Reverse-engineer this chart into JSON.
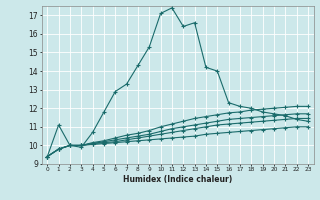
{
  "title": "",
  "xlabel": "Humidex (Indice chaleur)",
  "bg_color": "#cce8ea",
  "grid_color": "#b8d8da",
  "line_color": "#1a6b6b",
  "xlim": [
    -0.5,
    23.5
  ],
  "ylim": [
    9,
    17.5
  ],
  "yticks": [
    9,
    10,
    11,
    12,
    13,
    14,
    15,
    16,
    17
  ],
  "xticks": [
    0,
    1,
    2,
    3,
    4,
    5,
    6,
    7,
    8,
    9,
    10,
    11,
    12,
    13,
    14,
    15,
    16,
    17,
    18,
    19,
    20,
    21,
    22,
    23
  ],
  "main_x": [
    0,
    1,
    2,
    3,
    4,
    5,
    6,
    7,
    8,
    9,
    10,
    11,
    12,
    13,
    14,
    15,
    16,
    17,
    18,
    19,
    20,
    21,
    22,
    23
  ],
  "main_y": [
    9.4,
    11.1,
    10.0,
    9.9,
    10.7,
    11.8,
    12.9,
    13.3,
    14.3,
    15.3,
    17.1,
    17.4,
    16.4,
    16.6,
    14.2,
    14.0,
    12.3,
    12.1,
    12.0,
    11.8,
    11.7,
    11.6,
    11.4,
    11.3
  ],
  "flat1_x": [
    0,
    1,
    2,
    3,
    4,
    5,
    6,
    7,
    8,
    9,
    10,
    11,
    12,
    13,
    14,
    15,
    16,
    17,
    18,
    19,
    20,
    21,
    22,
    23
  ],
  "flat1_y": [
    9.4,
    9.8,
    10.0,
    10.0,
    10.05,
    10.1,
    10.15,
    10.2,
    10.25,
    10.3,
    10.35,
    10.4,
    10.45,
    10.5,
    10.6,
    10.65,
    10.7,
    10.75,
    10.8,
    10.85,
    10.9,
    10.95,
    11.0,
    11.0
  ],
  "flat2_x": [
    0,
    1,
    2,
    3,
    4,
    5,
    6,
    7,
    8,
    9,
    10,
    11,
    12,
    13,
    14,
    15,
    16,
    17,
    18,
    19,
    20,
    21,
    22,
    23
  ],
  "flat2_y": [
    9.4,
    9.8,
    10.0,
    10.0,
    10.1,
    10.15,
    10.2,
    10.3,
    10.4,
    10.5,
    10.6,
    10.7,
    10.8,
    10.9,
    11.0,
    11.1,
    11.15,
    11.2,
    11.25,
    11.3,
    11.35,
    11.4,
    11.45,
    11.45
  ],
  "flat3_x": [
    0,
    1,
    2,
    3,
    4,
    5,
    6,
    7,
    8,
    9,
    10,
    11,
    12,
    13,
    14,
    15,
    16,
    17,
    18,
    19,
    20,
    21,
    22,
    23
  ],
  "flat3_y": [
    9.4,
    9.8,
    10.0,
    10.0,
    10.1,
    10.2,
    10.3,
    10.4,
    10.5,
    10.6,
    10.75,
    10.9,
    11.0,
    11.1,
    11.2,
    11.3,
    11.4,
    11.45,
    11.5,
    11.55,
    11.6,
    11.65,
    11.7,
    11.7
  ],
  "flat4_x": [
    0,
    1,
    2,
    3,
    4,
    5,
    6,
    7,
    8,
    9,
    10,
    11,
    12,
    13,
    14,
    15,
    16,
    17,
    18,
    19,
    20,
    21,
    22,
    23
  ],
  "flat4_y": [
    9.4,
    9.8,
    10.0,
    10.0,
    10.15,
    10.25,
    10.4,
    10.55,
    10.65,
    10.8,
    11.0,
    11.15,
    11.3,
    11.45,
    11.55,
    11.65,
    11.75,
    11.8,
    11.9,
    11.95,
    12.0,
    12.05,
    12.1,
    12.1
  ],
  "markersize": 3,
  "linewidth": 0.8
}
